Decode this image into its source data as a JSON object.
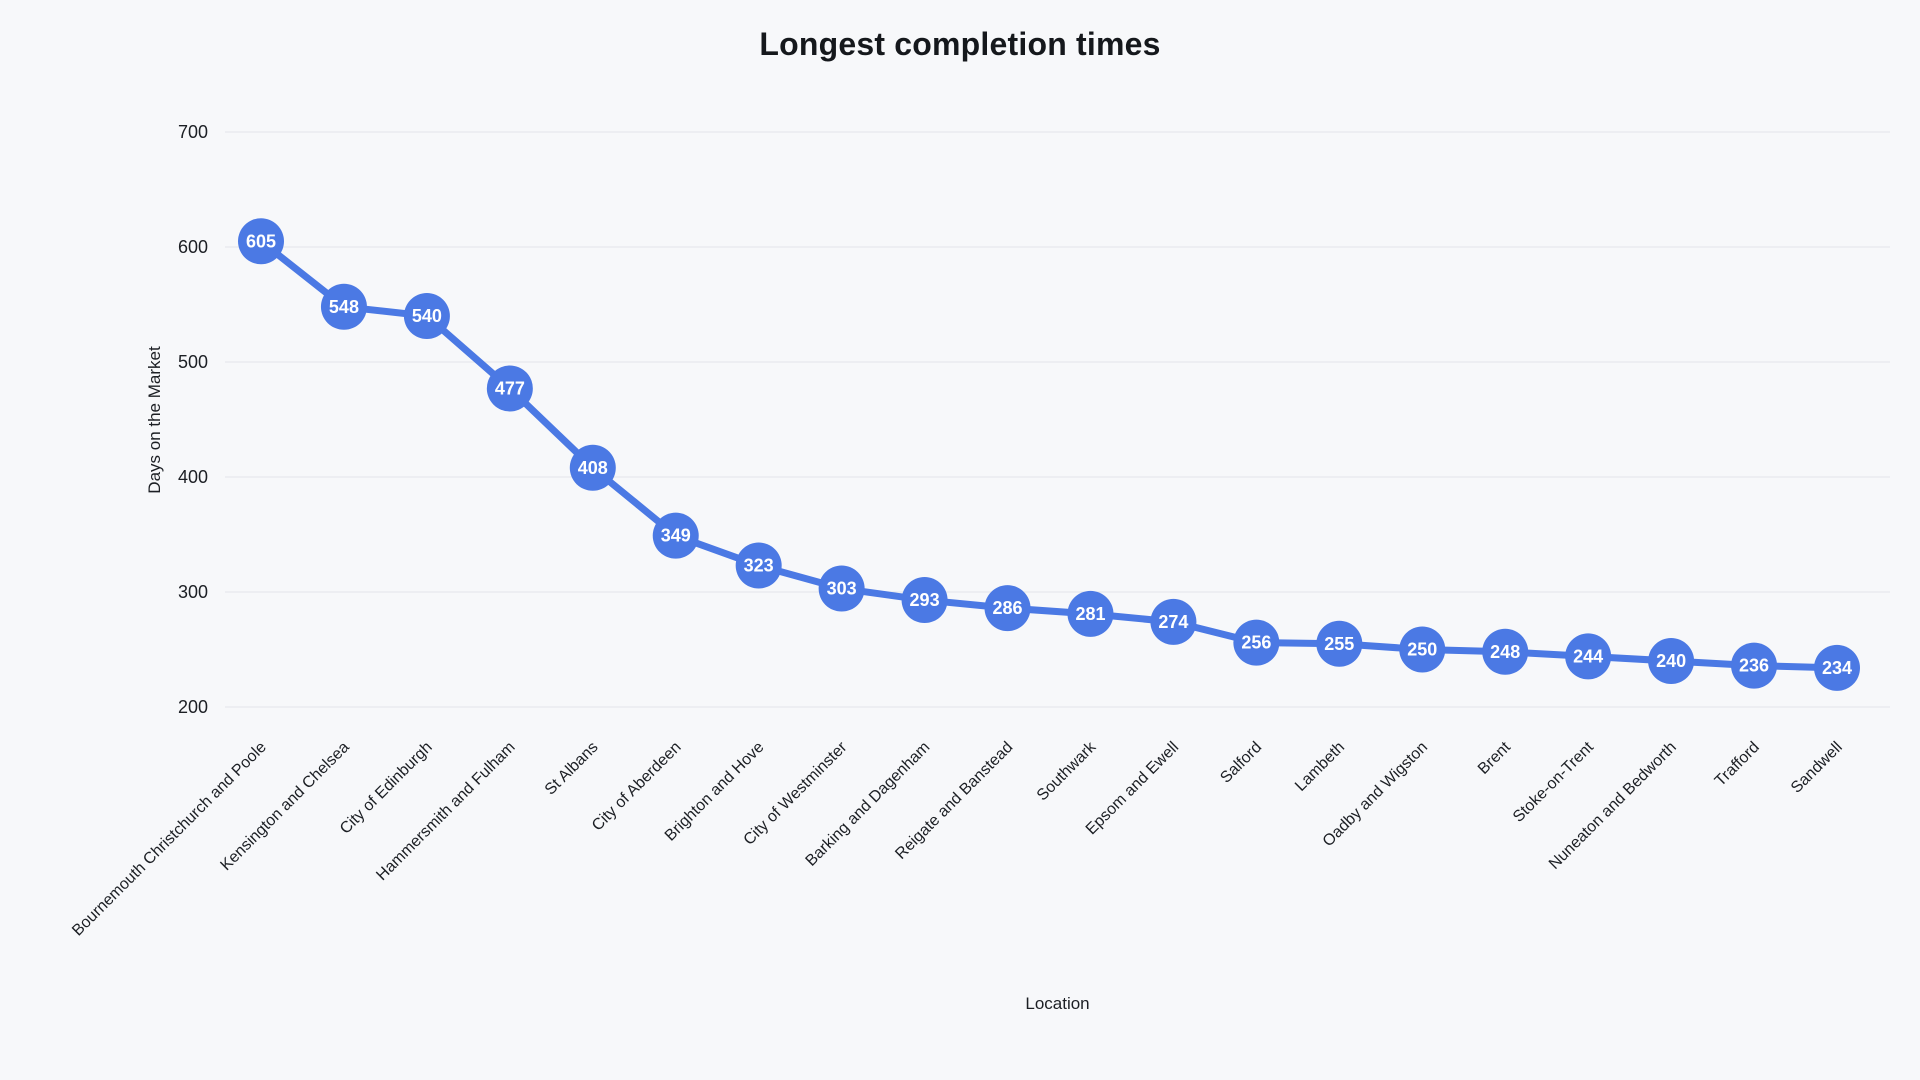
{
  "chart_data": {
    "type": "line",
    "title": "Longest completion times",
    "xlabel": "Location",
    "ylabel": "Days on the Market",
    "categories": [
      "Bournemouth Christchurch and Poole",
      "Kensington and Chelsea",
      "City of Edinburgh",
      "Hammersmith and Fulham",
      "St Albans",
      "City of Aberdeen",
      "Brighton and Hove",
      "City of Westminster",
      "Barking and Dagenham",
      "Reigate and Banstead",
      "Southwark",
      "Epsom and Ewell",
      "Salford",
      "Lambeth",
      "Oadby and Wigston",
      "Brent",
      "Stoke-on-Trent",
      "Nuneaton and Bedworth",
      "Trafford",
      "Sandwell"
    ],
    "values": [
      605,
      548,
      540,
      477,
      408,
      349,
      323,
      303,
      293,
      286,
      281,
      274,
      256,
      255,
      250,
      248,
      244,
      240,
      236,
      234
    ],
    "ylim": [
      200,
      700
    ],
    "yticks": [
      200,
      300,
      400,
      500,
      600,
      700
    ],
    "grid": "horizontal-only",
    "legend": "none",
    "point_labels": "value shown inside each circular marker",
    "x_tick_rotation_degrees": 45,
    "colors": {
      "series": "#4b79e4",
      "point_label": "#ffffff",
      "grid": "#e3e5e9",
      "tick_text": "#1c1f24",
      "title_text": "#15181c",
      "background": "#f7f8fa"
    }
  }
}
